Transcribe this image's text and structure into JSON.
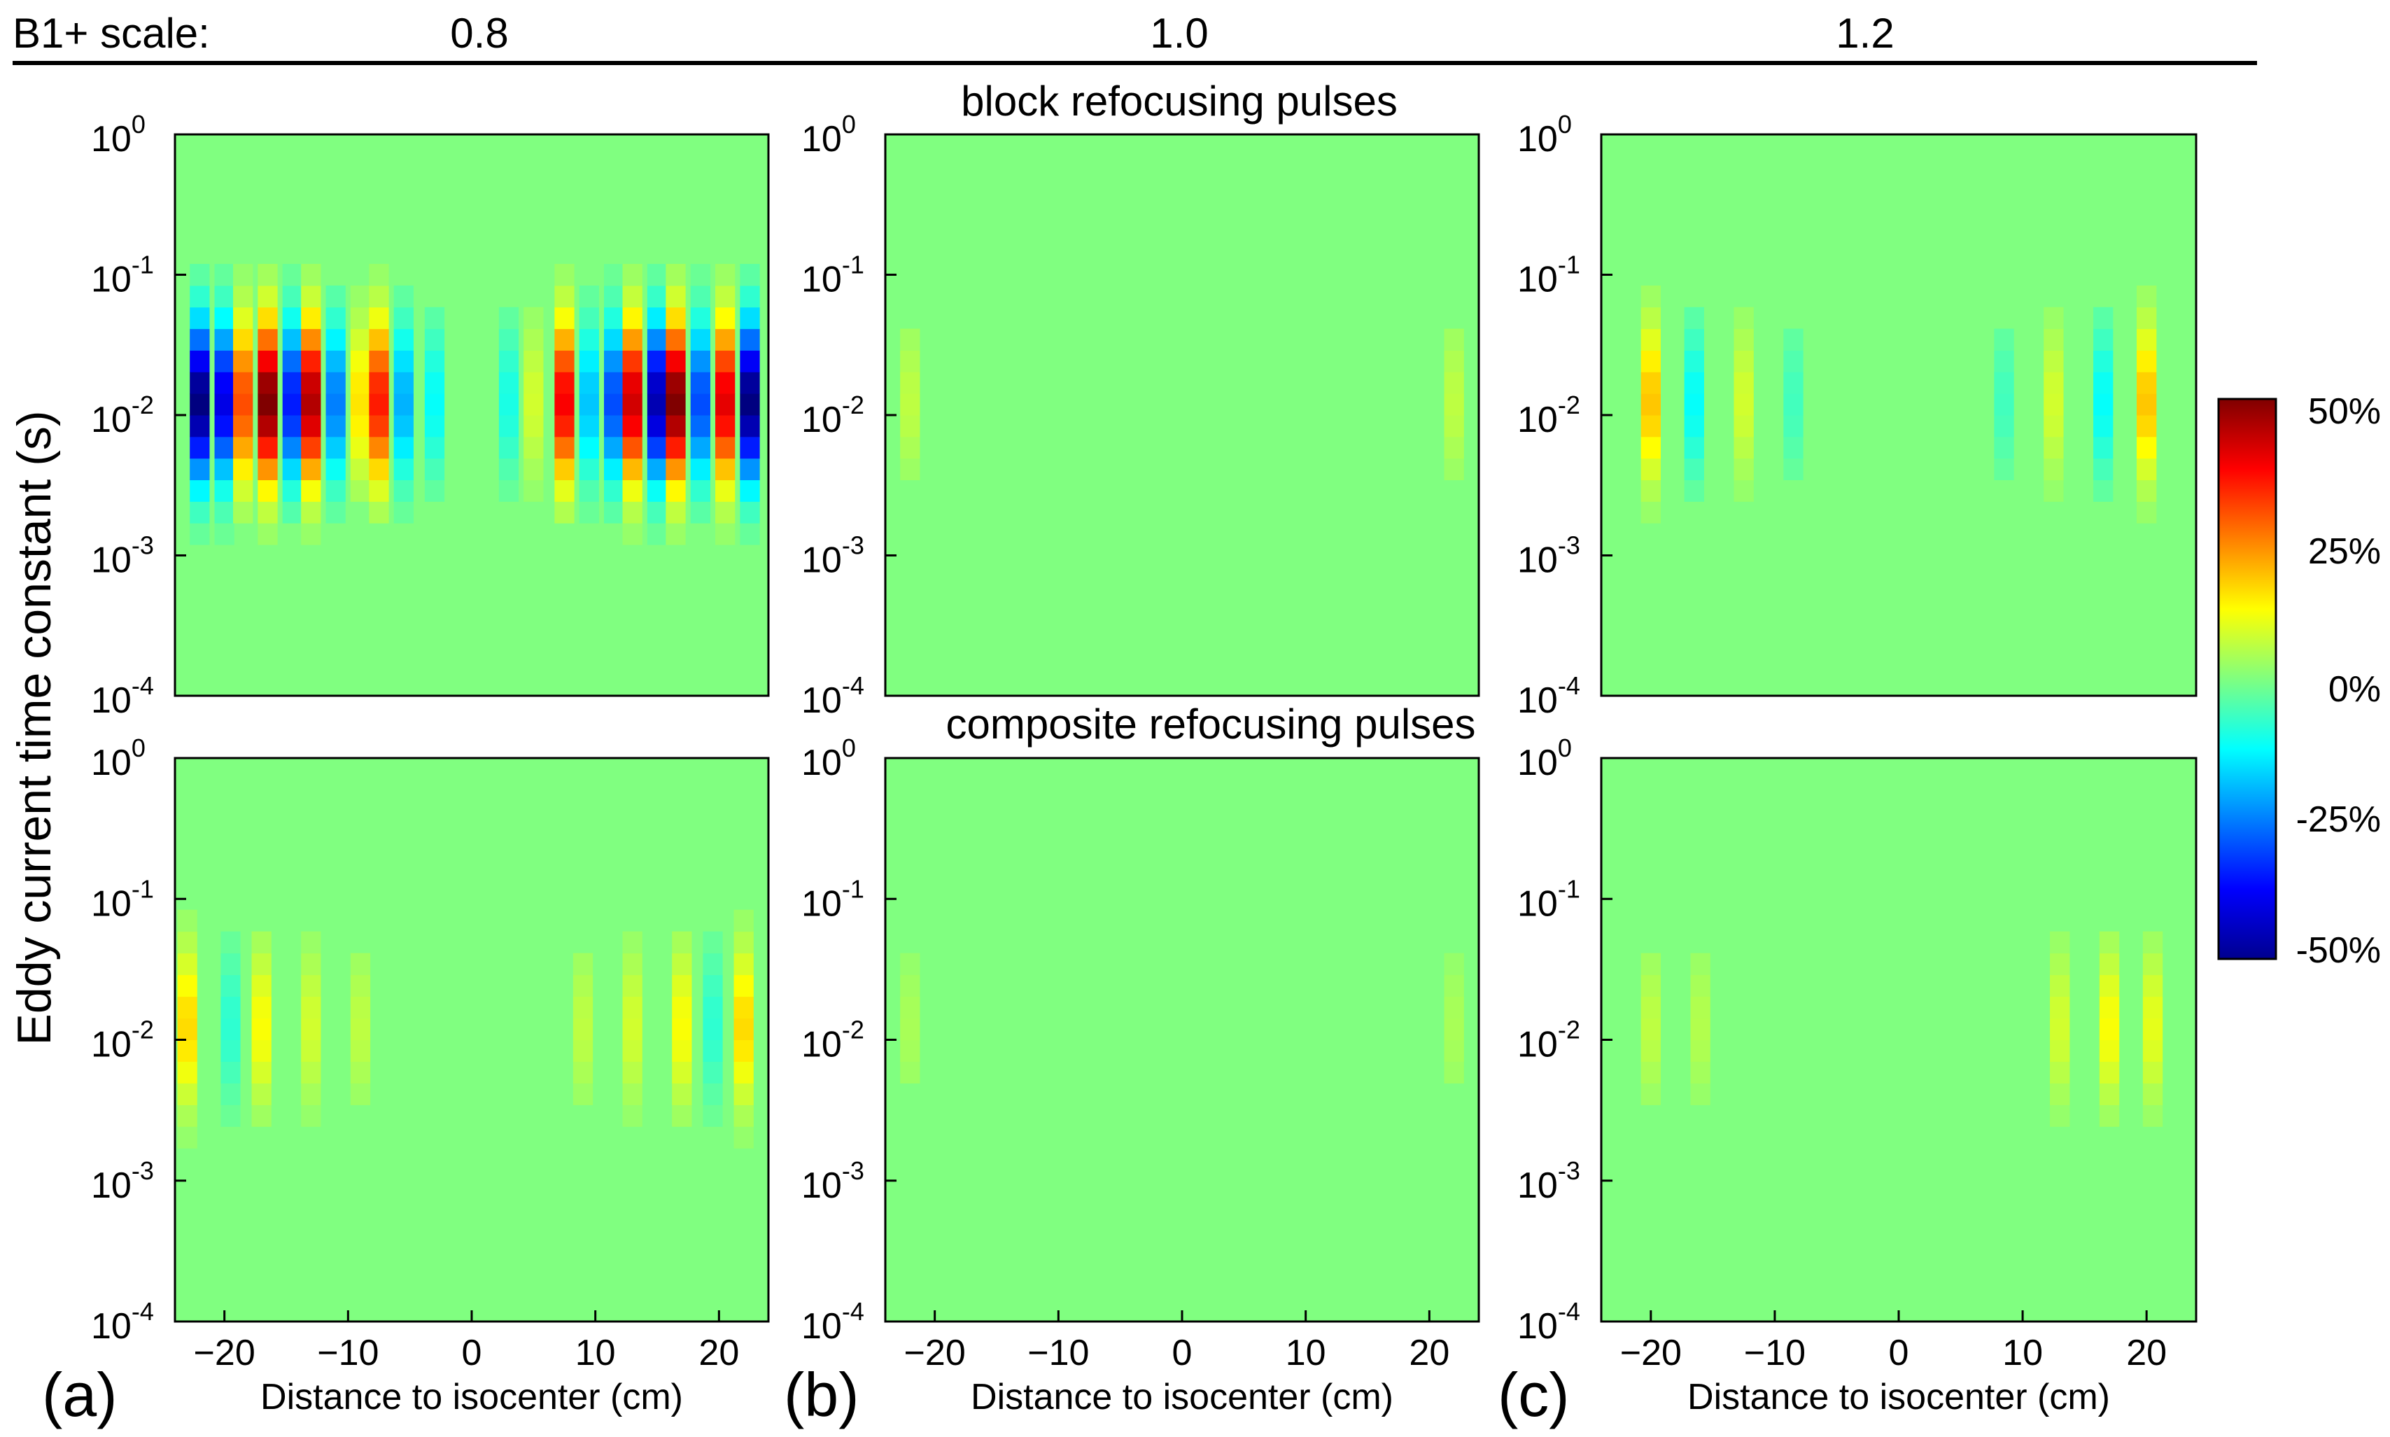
{
  "header": {
    "label": "B1+ scale:",
    "scales": [
      "0.8",
      "1.0",
      "1.2"
    ]
  },
  "row_titles": [
    "block refocusing pulses",
    "composite refocusing pulses"
  ],
  "ylabel": "Eddy current time constant (s)",
  "xlabel": "Distance to isocenter (cm)",
  "panel_letters": [
    "(a)",
    "(b)",
    "(c)"
  ],
  "colorbar": {
    "ticks": [
      "50%",
      "25%",
      "0%",
      "-25%",
      "-50%"
    ],
    "tick_values": [
      50,
      25,
      0,
      -25,
      -50
    ],
    "range": [
      -50,
      50
    ],
    "colormap": "jet"
  },
  "chart_data": {
    "type": "heatmap",
    "x_ticks": [
      -20,
      -10,
      0,
      10,
      20
    ],
    "x_range": [
      -24,
      24
    ],
    "y_scale": "log",
    "y_ticks": [
      0.0001,
      0.001,
      0.01,
      0.1,
      1
    ],
    "y_tick_exponents": [
      "-4",
      "-3",
      "-2",
      "-1",
      "0"
    ],
    "y_range": [
      0.0001,
      1
    ],
    "colors": {
      "background_value": 0,
      "low": "#00008f",
      "mid": "#7fff7f",
      "high": "#800000"
    },
    "panels": [
      {
        "row": "block refocusing pulses",
        "b1_scale": "0.8",
        "letter": "",
        "stripes": [
          {
            "x": -22,
            "amp": -50
          },
          {
            "x": -20,
            "amp": -40
          },
          {
            "x": -18.5,
            "amp": 30
          },
          {
            "x": -16.5,
            "amp": 50
          },
          {
            "x": -14.5,
            "amp": -35
          },
          {
            "x": -13,
            "amp": 45
          },
          {
            "x": -11,
            "amp": -25
          },
          {
            "x": -9,
            "amp": 15
          },
          {
            "x": -7.5,
            "amp": 35
          },
          {
            "x": -5.5,
            "amp": -20
          },
          {
            "x": -3,
            "amp": -12
          },
          {
            "x": 3,
            "amp": -10
          },
          {
            "x": 5,
            "amp": 8
          },
          {
            "x": 7.5,
            "amp": 38
          },
          {
            "x": 9.5,
            "amp": -18
          },
          {
            "x": 11.5,
            "amp": -30
          },
          {
            "x": 13,
            "amp": 42
          },
          {
            "x": 15,
            "amp": -45
          },
          {
            "x": 16.5,
            "amp": 50
          },
          {
            "x": 18.5,
            "amp": -30
          },
          {
            "x": 20.5,
            "amp": 40
          },
          {
            "x": 22.5,
            "amp": -50
          }
        ]
      },
      {
        "row": "block refocusing pulses",
        "b1_scale": "1.0",
        "letter": "",
        "stripes": [
          {
            "x": -22,
            "amp": 6
          },
          {
            "x": 22,
            "amp": 6
          }
        ]
      },
      {
        "row": "block refocusing pulses",
        "b1_scale": "1.2",
        "letter": "",
        "stripes": [
          {
            "x": -20,
            "amp": 18
          },
          {
            "x": -16.5,
            "amp": -12
          },
          {
            "x": -12.5,
            "amp": 8
          },
          {
            "x": -8.5,
            "amp": -6
          },
          {
            "x": 8.5,
            "amp": -6
          },
          {
            "x": 12.5,
            "amp": 8
          },
          {
            "x": 16.5,
            "amp": -12
          },
          {
            "x": 20,
            "amp": 18
          }
        ]
      },
      {
        "row": "composite refocusing pulses",
        "b1_scale": "0.8",
        "letter": "(a)",
        "stripes": [
          {
            "x": -23,
            "amp": 16
          },
          {
            "x": -19.5,
            "amp": -8
          },
          {
            "x": -17,
            "amp": 12
          },
          {
            "x": -13,
            "amp": 8
          },
          {
            "x": -9,
            "amp": 6
          },
          {
            "x": 9,
            "amp": 6
          },
          {
            "x": 13,
            "amp": 8
          },
          {
            "x": 17,
            "amp": 12
          },
          {
            "x": 19.5,
            "amp": -8
          },
          {
            "x": 22,
            "amp": 16
          }
        ]
      },
      {
        "row": "composite refocusing pulses",
        "b1_scale": "1.0",
        "letter": "(b)",
        "stripes": [
          {
            "x": -22,
            "amp": 4
          },
          {
            "x": 22,
            "amp": 4
          }
        ]
      },
      {
        "row": "composite refocusing pulses",
        "b1_scale": "1.2",
        "letter": "(c)",
        "stripes": [
          {
            "x": -20,
            "amp": 6
          },
          {
            "x": -16,
            "amp": 5
          },
          {
            "x": 13,
            "amp": 8
          },
          {
            "x": 17,
            "amp": 12
          },
          {
            "x": 20.5,
            "amp": 10
          }
        ]
      }
    ]
  }
}
